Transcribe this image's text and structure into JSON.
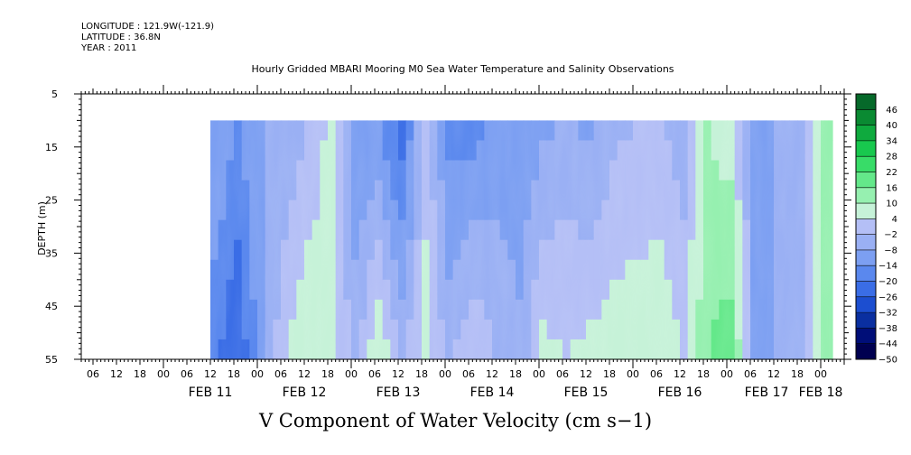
{
  "header": {
    "longitude": "LONGITUDE : 121.9W(-121.9)",
    "latitude": "LATITUDE : 36.8N",
    "year": "YEAR : 2011",
    "title": "Hourly Gridded MBARI Mooring M0 Sea Water Temperature and Salinity Observations"
  },
  "footer": {
    "variable_title": "V Component of Water Velocity (cm s−1)"
  },
  "chart_data": {
    "type": "heatmap",
    "title": "Hourly Gridded MBARI Mooring M0 Sea Water Temperature and Salinity Observations",
    "variable": "V Component of Water Velocity (cm s−1)",
    "xlabel": "",
    "ylabel": "DEPTH (m)",
    "x_range": [
      "2011-02-10T03:00",
      "2011-02-18T06:00"
    ],
    "data_x_range": [
      "2011-02-11T12:00",
      "2011-02-18T03:00"
    ],
    "ylim": [
      55,
      5
    ],
    "data_depth_range": [
      10,
      55
    ],
    "y_ticks": [
      5,
      15,
      25,
      35,
      45,
      55
    ],
    "x_hour_labels": [
      "06",
      "12",
      "18",
      "00",
      "06",
      "12",
      "18",
      "00",
      "06",
      "12",
      "18",
      "00",
      "06",
      "12",
      "18",
      "00",
      "06",
      "12",
      "18",
      "00",
      "06",
      "12",
      "18",
      "00",
      "06",
      "12",
      "18",
      "00",
      "06",
      "12",
      "18",
      "00"
    ],
    "x_day_labels": [
      "FEB 11",
      "FEB 12",
      "FEB 13",
      "FEB 14",
      "FEB 15",
      "FEB 16",
      "FEB 17",
      "FEB 18"
    ],
    "colorbar": {
      "levels": [
        -50,
        -44,
        -38,
        -32,
        -26,
        -20,
        -14,
        -8,
        -2,
        4,
        10,
        16,
        22,
        28,
        34,
        40,
        46
      ],
      "colors": [
        "#000050",
        "#000e78",
        "#0a2fa0",
        "#1c4ed0",
        "#3a6de6",
        "#5a88ee",
        "#7c9ff2",
        "#9ab0f4",
        "#b4bff6",
        "#c6f2d8",
        "#96f0b0",
        "#64e88a",
        "#38dc68",
        "#18c84e",
        "#0faa3e",
        "#0a8a32",
        "#06692a"
      ]
    },
    "columns": [
      {
        "x": "2011-02-11T12",
        "v": [
          -8,
          -18
        ]
      },
      {
        "x": "2011-02-11T18",
        "v": [
          -14,
          -26
        ]
      },
      {
        "x": "2011-02-12T00",
        "v": [
          -8,
          -10
        ]
      },
      {
        "x": "2011-02-12T06",
        "v": [
          -8,
          4
        ]
      },
      {
        "x": "2011-02-12T12",
        "v": [
          -2,
          10
        ]
      },
      {
        "x": "2011-02-12T18",
        "v": [
          6,
          8
        ]
      },
      {
        "x": "2011-02-13T00",
        "v": [
          -14,
          -4
        ]
      },
      {
        "x": "2011-02-13T06",
        "v": [
          -14,
          10
        ]
      },
      {
        "x": "2011-02-13T12",
        "v": [
          -24,
          -2
        ]
      },
      {
        "x": "2011-02-13T18",
        "v": [
          2,
          6
        ]
      },
      {
        "x": "2011-02-14T00",
        "v": [
          -16,
          -4
        ]
      },
      {
        "x": "2011-02-14T06",
        "v": [
          -18,
          4
        ]
      },
      {
        "x": "2011-02-14T12",
        "v": [
          -12,
          -2
        ]
      },
      {
        "x": "2011-02-14T18",
        "v": [
          -14,
          -6
        ]
      },
      {
        "x": "2011-02-15T00",
        "v": [
          -10,
          6
        ]
      },
      {
        "x": "2011-02-15T06",
        "v": [
          -6,
          4
        ]
      },
      {
        "x": "2011-02-15T12",
        "v": [
          -10,
          6
        ]
      },
      {
        "x": "2011-02-15T18",
        "v": [
          -4,
          8
        ]
      },
      {
        "x": "2011-02-16T00",
        "v": [
          -2,
          8
        ]
      },
      {
        "x": "2011-02-16T06",
        "v": [
          -2,
          10
        ]
      },
      {
        "x": "2011-02-16T12",
        "v": [
          -6,
          4
        ]
      },
      {
        "x": "2011-02-16T18",
        "v": [
          10,
          16
        ]
      },
      {
        "x": "2011-02-17T00",
        "v": [
          6,
          20
        ]
      },
      {
        "x": "2011-02-17T06",
        "v": [
          -10,
          -8
        ]
      },
      {
        "x": "2011-02-17T12",
        "v": [
          -8,
          -8
        ]
      },
      {
        "x": "2011-02-17T18",
        "v": [
          -6,
          -6
        ]
      },
      {
        "x": "2011-02-18T00",
        "v": [
          14,
          10
        ]
      }
    ]
  }
}
